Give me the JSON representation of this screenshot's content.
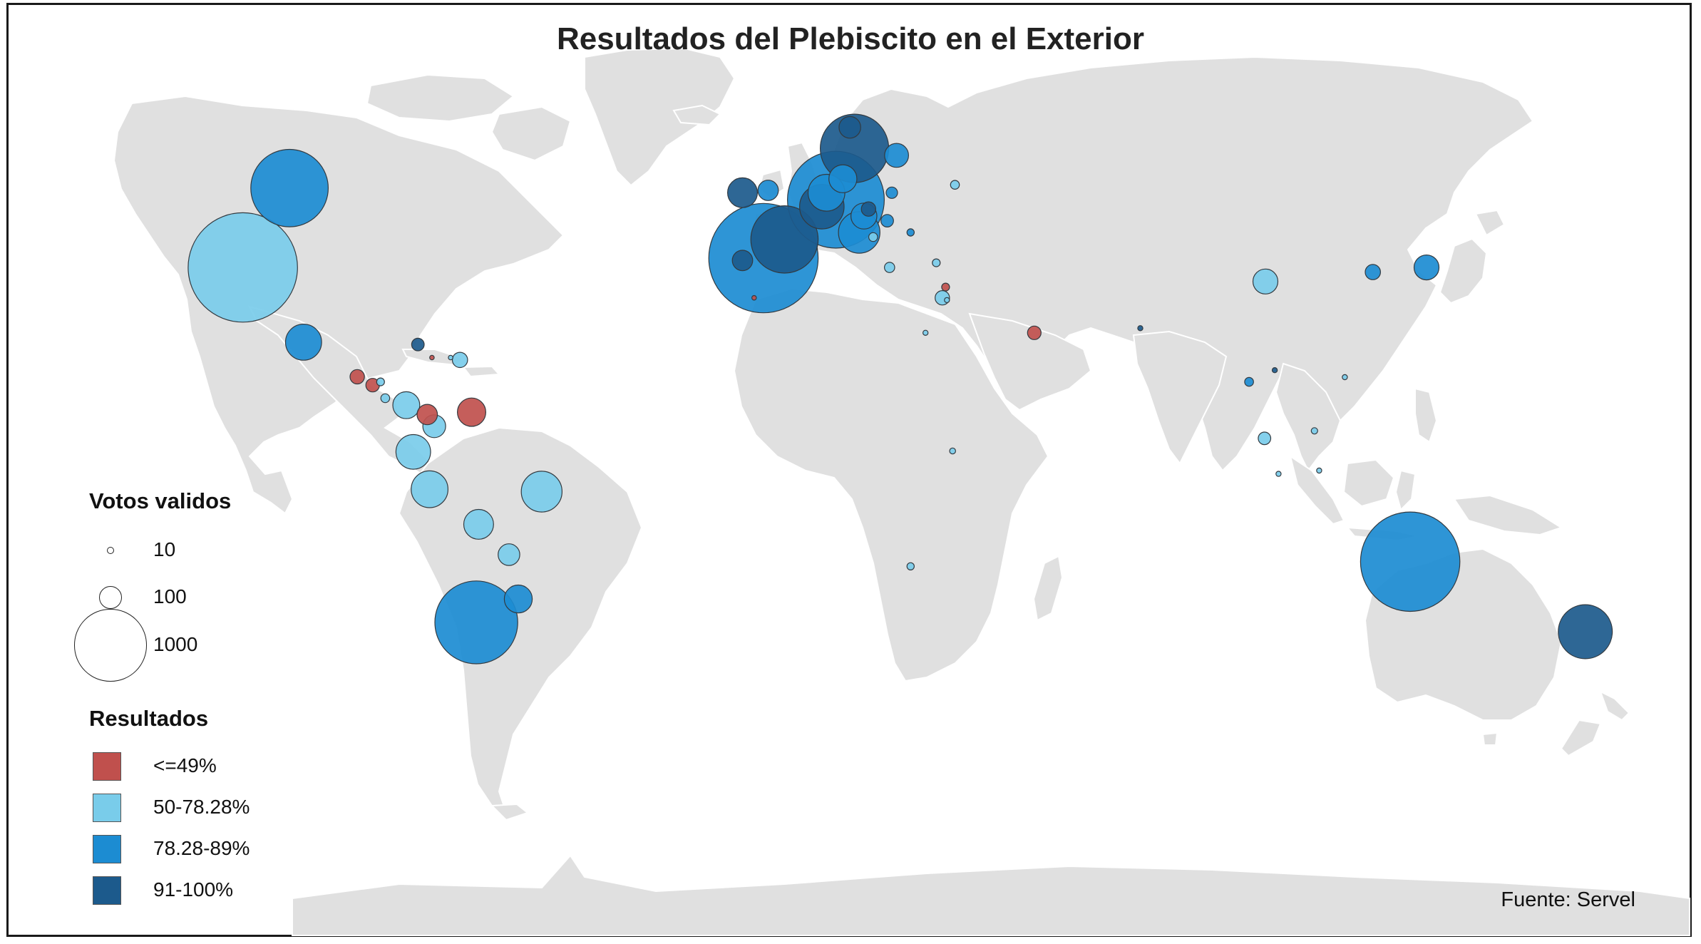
{
  "title": "Resultados del Plebiscito en el Exterior",
  "source": "Fuente: Servel",
  "size_legend": {
    "heading": "Votos validos",
    "entries": [
      {
        "label": "10",
        "value": 10
      },
      {
        "label": "100",
        "value": 100
      },
      {
        "label": "1000",
        "value": 1000
      }
    ]
  },
  "color_legend": {
    "heading": "Resultados",
    "classes": [
      {
        "label": "<=49%",
        "color": "#c0504d"
      },
      {
        "label": "50-78.28%",
        "color": "#79ccea"
      },
      {
        "label": "78.28-89%",
        "color": "#1c8cd2"
      },
      {
        "label": "91-100%",
        "color": "#1c5a8c"
      }
    ]
  },
  "bubbles": [
    {
      "lon": -105,
      "lat": 55,
      "votes": 1150,
      "class": 2
    },
    {
      "lon": -115,
      "lat": 38,
      "votes": 2300,
      "class": 1
    },
    {
      "lon": -102,
      "lat": 22,
      "votes": 250,
      "class": 2
    },
    {
      "lon": -90.5,
      "lat": 14.6,
      "votes": 40,
      "class": 0
    },
    {
      "lon": -87.2,
      "lat": 12.8,
      "votes": 35,
      "class": 0
    },
    {
      "lon": -85.5,
      "lat": 13.5,
      "votes": 12,
      "class": 1
    },
    {
      "lon": -84.5,
      "lat": 10,
      "votes": 15,
      "class": 1
    },
    {
      "lon": -80,
      "lat": 8.5,
      "votes": 140,
      "class": 1
    },
    {
      "lon": -75.5,
      "lat": 6.5,
      "votes": 80,
      "class": 0
    },
    {
      "lon": -77.5,
      "lat": 21.5,
      "votes": 30,
      "class": 3
    },
    {
      "lon": -74.5,
      "lat": 18.7,
      "votes": 4,
      "class": 0
    },
    {
      "lon": -70.5,
      "lat": 18.7,
      "votes": 4,
      "class": 1
    },
    {
      "lon": -68.5,
      "lat": 18.2,
      "votes": 45,
      "class": 1
    },
    {
      "lon": -74,
      "lat": 4,
      "votes": 100,
      "class": 1
    },
    {
      "lon": -66,
      "lat": 7,
      "votes": 155,
      "class": 0
    },
    {
      "lon": -78.5,
      "lat": -1.5,
      "votes": 230,
      "class": 1
    },
    {
      "lon": -75,
      "lat": -9.5,
      "votes": 260,
      "class": 1
    },
    {
      "lon": -51,
      "lat": -10,
      "votes": 320,
      "class": 1
    },
    {
      "lon": -64.5,
      "lat": -17,
      "votes": 170,
      "class": 1
    },
    {
      "lon": -58,
      "lat": -23.5,
      "votes": 90,
      "class": 1
    },
    {
      "lon": -65,
      "lat": -38,
      "votes": 1320,
      "class": 2
    },
    {
      "lon": -56,
      "lat": -33,
      "votes": 150,
      "class": 2
    },
    {
      "lon": -3.5,
      "lat": 40,
      "votes": 2300,
      "class": 2
    },
    {
      "lon": 1,
      "lat": 44,
      "votes": 870,
      "class": 3
    },
    {
      "lon": -8,
      "lat": 39.5,
      "votes": 80,
      "class": 3
    },
    {
      "lon": -5.5,
      "lat": 31.5,
      "votes": 4,
      "class": 0
    },
    {
      "lon": 12,
      "lat": 52.5,
      "votes": 1800,
      "class": 2
    },
    {
      "lon": 9,
      "lat": 51,
      "votes": 380,
      "class": 3
    },
    {
      "lon": 10,
      "lat": 54,
      "votes": 260,
      "class": 2
    },
    {
      "lon": 13.5,
      "lat": 57,
      "votes": 150,
      "class": 2
    },
    {
      "lon": 16,
      "lat": 63.5,
      "votes": 900,
      "class": 3
    },
    {
      "lon": 15,
      "lat": 68,
      "votes": 90,
      "class": 3
    },
    {
      "lon": 25,
      "lat": 62,
      "votes": 110,
      "class": 2
    },
    {
      "lon": -8,
      "lat": 54,
      "votes": 170,
      "class": 3
    },
    {
      "lon": -2.5,
      "lat": 54.5,
      "votes": 80,
      "class": 2
    },
    {
      "lon": 17,
      "lat": 45.5,
      "votes": 330,
      "class": 2
    },
    {
      "lon": 18,
      "lat": 49,
      "votes": 130,
      "class": 2
    },
    {
      "lon": 19,
      "lat": 50.5,
      "votes": 40,
      "class": 3
    },
    {
      "lon": 24,
      "lat": 54,
      "votes": 25,
      "class": 2
    },
    {
      "lon": 23,
      "lat": 48,
      "votes": 30,
      "class": 2
    },
    {
      "lon": 20,
      "lat": 44.5,
      "votes": 15,
      "class": 1
    },
    {
      "lon": 28,
      "lat": 45.5,
      "votes": 10,
      "class": 2
    },
    {
      "lon": 23.5,
      "lat": 38,
      "votes": 20,
      "class": 1
    },
    {
      "lon": 33.5,
      "lat": 39,
      "votes": 12,
      "class": 1
    },
    {
      "lon": 35.5,
      "lat": 33.8,
      "votes": 12,
      "class": 0
    },
    {
      "lon": 34.8,
      "lat": 31.5,
      "votes": 40,
      "class": 1
    },
    {
      "lon": 35.8,
      "lat": 31,
      "votes": 5,
      "class": 1
    },
    {
      "lon": 31.2,
      "lat": 24,
      "votes": 5,
      "class": 1
    },
    {
      "lon": 54.5,
      "lat": 24,
      "votes": 35,
      "class": 0
    },
    {
      "lon": 37.5,
      "lat": 55.7,
      "votes": 15,
      "class": 1
    },
    {
      "lon": 37,
      "lat": -1.3,
      "votes": 7,
      "class": 1
    },
    {
      "lon": 28,
      "lat": -26,
      "votes": 10,
      "class": 1
    },
    {
      "lon": 77.2,
      "lat": 25,
      "votes": 5,
      "class": 3
    },
    {
      "lon": 104,
      "lat": 35,
      "votes": 120,
      "class": 1
    },
    {
      "lon": 127,
      "lat": 37,
      "votes": 45,
      "class": 2
    },
    {
      "lon": 138.5,
      "lat": 38,
      "votes": 120,
      "class": 2
    },
    {
      "lon": 100.5,
      "lat": 13.5,
      "votes": 15,
      "class": 2
    },
    {
      "lon": 106,
      "lat": 16,
      "votes": 5,
      "class": 3
    },
    {
      "lon": 121,
      "lat": 14.5,
      "votes": 5,
      "class": 1
    },
    {
      "lon": 103.8,
      "lat": 1.4,
      "votes": 30,
      "class": 1
    },
    {
      "lon": 114.5,
      "lat": 3,
      "votes": 8,
      "class": 1
    },
    {
      "lon": 106.8,
      "lat": -6.2,
      "votes": 5,
      "class": 1
    },
    {
      "lon": 115.5,
      "lat": -5.5,
      "votes": 5,
      "class": 1
    },
    {
      "lon": 135,
      "lat": -25,
      "votes": 1900,
      "class": 2
    },
    {
      "lon": 172.5,
      "lat": -40,
      "votes": 560,
      "class": 3
    }
  ]
}
